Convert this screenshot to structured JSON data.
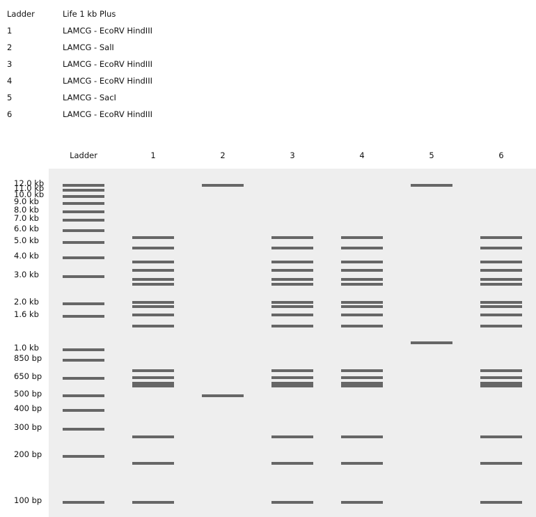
{
  "legend": [
    {
      "lane": "Ladder",
      "description": "Life 1 kb Plus"
    },
    {
      "lane": "1",
      "description": "LAMCG - EcoRV HindIII"
    },
    {
      "lane": "2",
      "description": "LAMCG - SalI"
    },
    {
      "lane": "3",
      "description": "LAMCG - EcoRV HindIII"
    },
    {
      "lane": "4",
      "description": "LAMCG - EcoRV HindIII"
    },
    {
      "lane": "5",
      "description": "LAMCG - SacI"
    },
    {
      "lane": "6",
      "description": "LAMCG - EcoRV HindIII"
    }
  ],
  "lanes": [
    "Ladder",
    "1",
    "2",
    "3",
    "4",
    "5",
    "6"
  ],
  "ladder_labels": [
    "12.0 kb",
    "11.0 kb",
    "10.0 kb",
    "9.0 kb",
    "8.0 kb",
    "7.0 kb",
    "6.0 kb",
    "5.0 kb",
    "4.0 kb",
    "3.0 kb",
    "2.0 kb",
    "1.6 kb",
    "1.0 kb",
    "850 bp",
    "650 bp",
    "500 bp",
    "400 bp",
    "300 bp",
    "200 bp",
    "100 bp"
  ],
  "colors": {
    "gel_background": "#eeeeee",
    "band": "#666666"
  }
}
